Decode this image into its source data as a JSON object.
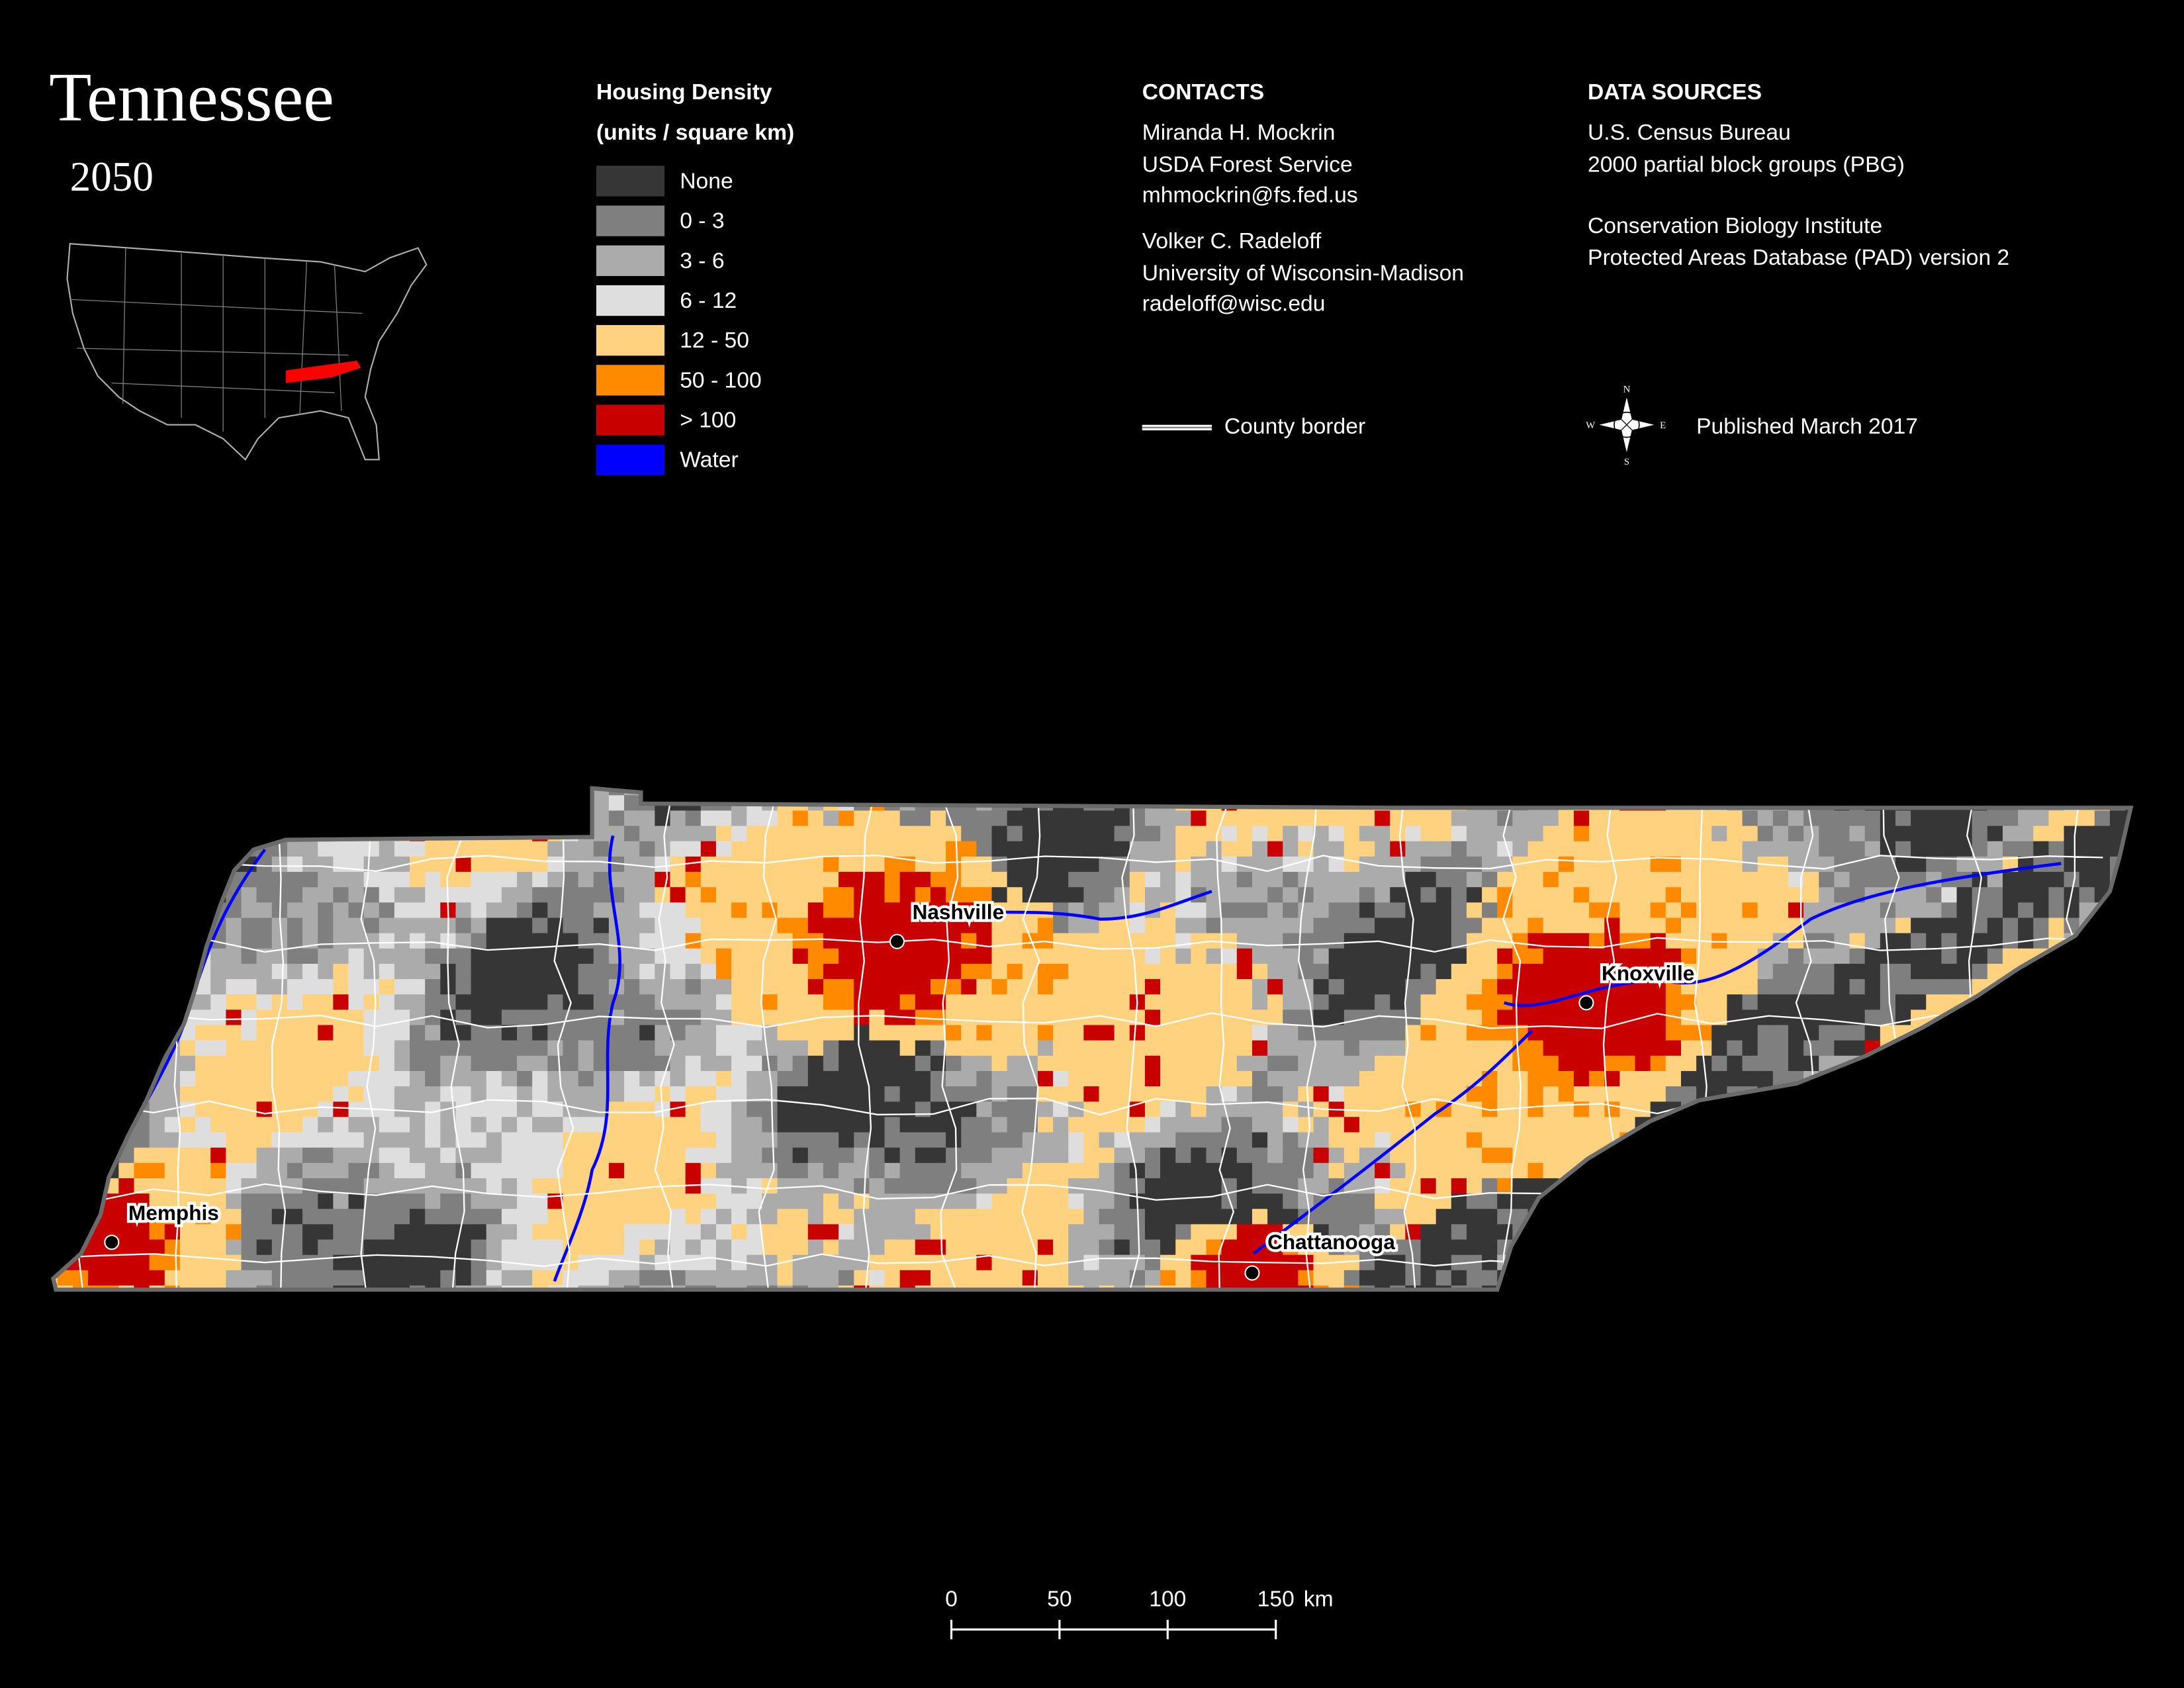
{
  "title": "Tennessee",
  "subtitle": "2050",
  "legend": {
    "title": "Housing Density",
    "subtitle": "(units / square km)",
    "items": [
      {
        "label": "None",
        "color": "#363636"
      },
      {
        "label": "0 - 3",
        "color": "#7f7f7f"
      },
      {
        "label": "3 - 6",
        "color": "#ababab"
      },
      {
        "label": "6 - 12",
        "color": "#dedede"
      },
      {
        "label": "12 - 50",
        "color": "#ffd280"
      },
      {
        "label": "50 - 100",
        "color": "#ff8a00"
      },
      {
        "label": "> 100",
        "color": "#c80000"
      },
      {
        "label": "Water",
        "color": "#0000ff"
      }
    ]
  },
  "contacts": {
    "heading": "CONTACTS",
    "people": [
      [
        "Miranda H. Mockrin",
        "USDA Forest Service",
        "mhmockrin@fs.fed.us"
      ],
      [
        "Volker C. Radeloff",
        "University of Wisconsin-Madison",
        "radeloff@wisc.edu"
      ]
    ]
  },
  "data_sources": {
    "heading": "DATA SOURCES",
    "groups": [
      [
        "U.S. Census Bureau",
        "2000 partial block groups (PBG)"
      ],
      [
        "Conservation Biology Institute",
        "Protected Areas Database (PAD) version 2"
      ]
    ]
  },
  "county_border": "County border",
  "compass": {
    "n": "N",
    "s": "S",
    "e": "E",
    "w": "W"
  },
  "published": "Published March 2017",
  "cities": [
    "Nashville",
    "Knoxville",
    "Chattanooga",
    "Memphis"
  ],
  "scale_bar": {
    "ticks": [
      0,
      50,
      100,
      150
    ],
    "unit": "km"
  }
}
